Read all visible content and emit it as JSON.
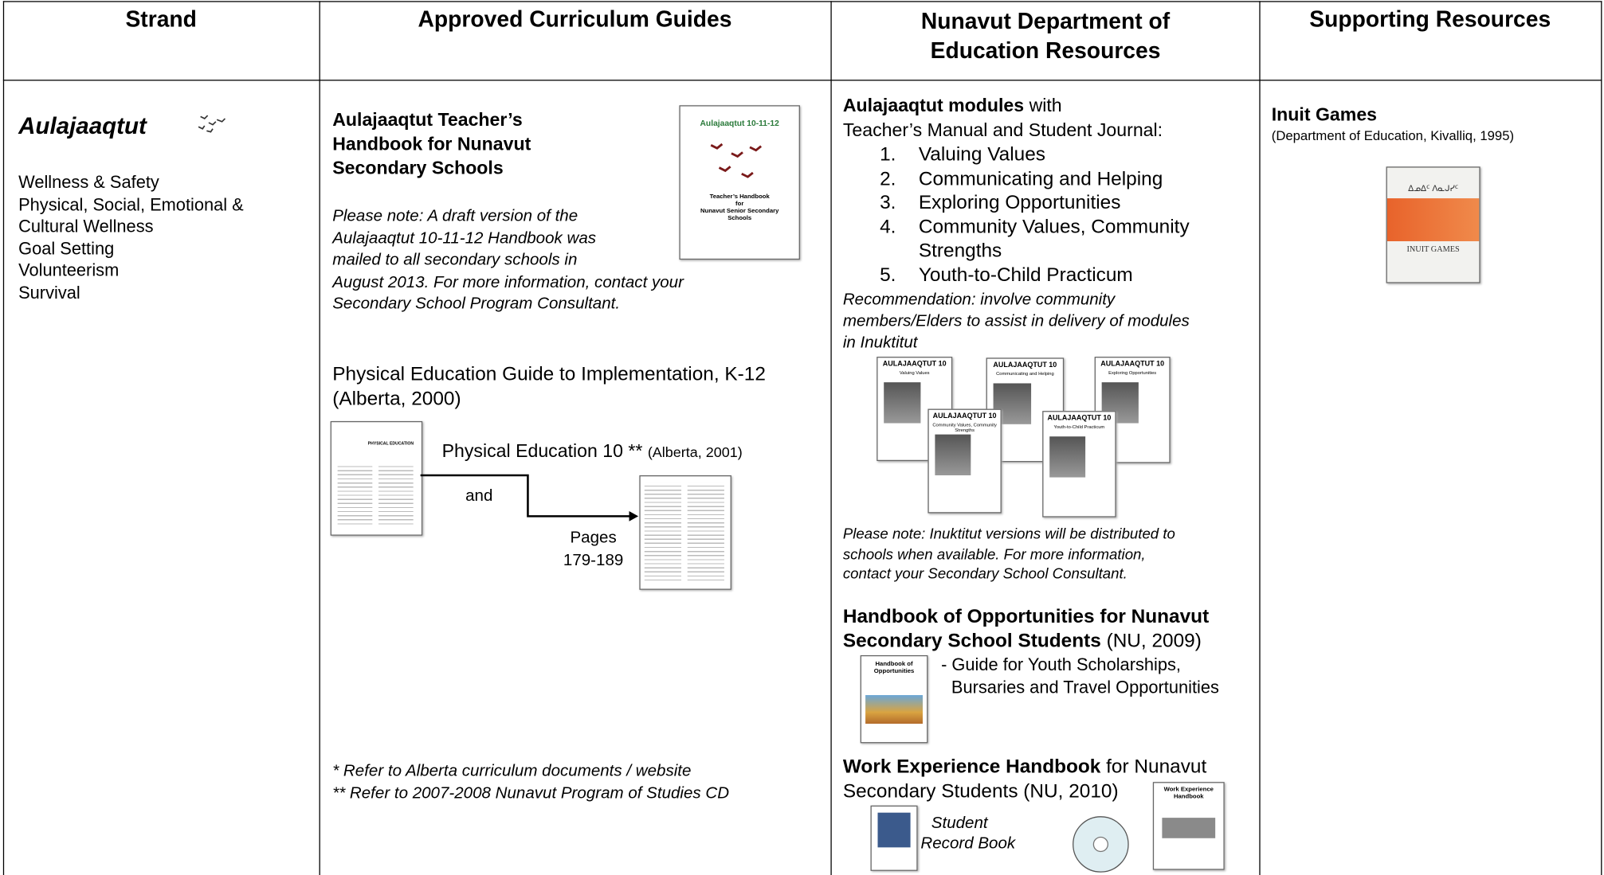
{
  "headers": [
    "Strand",
    "Approved Curriculum Guides",
    "Nunavut Department of Education Resources",
    "Supporting Resources"
  ],
  "strand": {
    "title": "Aulajaaqtut",
    "topics": [
      "Wellness & Safety",
      "Physical, Social, Emotional &",
      "Cultural Wellness",
      "Goal Setting",
      "Volunteerism",
      "Survival"
    ]
  },
  "guides": {
    "handbook": {
      "title_lines": [
        "Aulajaaqtut Teacher’s",
        "Handbook for Nunavut",
        "Secondary Schools"
      ],
      "note_lines": [
        "Please note: A draft version of the",
        "Aulajaaqtut 10-11-12 Handbook was",
        "mailed to all secondary schools in",
        "August 2013. For more information, contact your",
        "Secondary School Program Consultant."
      ],
      "cover": {
        "title": "Aulajaaqtut 10-11-12",
        "subtitle_lines": [
          "Teacher’s Handbook",
          "for",
          "Nunavut Senior Secondary Schools"
        ]
      }
    },
    "pe_guide": {
      "lines": [
        "Physical Education Guide to Implementation, K-12",
        "(Alberta, 2000)"
      ],
      "thumbnail_title": "PHYSICAL EDUCATION"
    },
    "pe10": {
      "title": "Physical Education 10 **",
      "source": "(Alberta, 2001)",
      "connector": "and",
      "pages_lines": [
        "Pages",
        "179-189"
      ]
    },
    "footnotes": [
      "*  Refer to Alberta curriculum documents / website",
      "** Refer to 2007-2008 Nunavut Program of Studies CD"
    ]
  },
  "resources": {
    "modules": {
      "heading_bold": "Aulajaaqtut modules",
      "heading_rest": "with",
      "subheading": "Teacher’s Manual and Student Journal:",
      "items": [
        {
          "number": "1.",
          "lines": [
            "Valuing Values"
          ]
        },
        {
          "number": "2.",
          "lines": [
            "Communicating and Helping"
          ]
        },
        {
          "number": "3.",
          "lines": [
            "Exploring Opportunities"
          ]
        },
        {
          "number": "4.",
          "lines": [
            "Community Values, Community",
            "Strengths"
          ]
        },
        {
          "number": "5.",
          "lines": [
            "Youth-to-Child Practicum"
          ]
        }
      ],
      "recommendation_lines": [
        "Recommendation: involve community",
        "members/Elders to assist in delivery of modules",
        "in Inuktitut"
      ],
      "covers": [
        {
          "series": "AULAJAAQTUT 10",
          "module": "Valuing Values"
        },
        {
          "series": "AULAJAAQTUT 10",
          "module": "Communicating and Helping"
        },
        {
          "series": "AULAJAAQTUT 10",
          "module": "Exploring Opportunities"
        },
        {
          "series": "AULAJAAQTUT 10",
          "module": "Community Values, Community Strengths"
        },
        {
          "series": "AULAJAAQTUT 10",
          "module": "Youth-to-Child Practicum"
        }
      ],
      "note_lines": [
        "Please note:  Inuktitut versions will be distributed to",
        "schools when available. For more information,",
        "contact your Secondary School Consultant."
      ]
    },
    "opportunities": {
      "title_lines": [
        "Handbook of Opportunities for Nunavut",
        "Secondary School Students"
      ],
      "title_rest": "(NU, 2009)",
      "description_lines": [
        "- Guide for Youth Scholarships,",
        "Bursaries and Travel Opportunities"
      ],
      "cover_title": "Handbook of Opportunities"
    },
    "work": {
      "title_bold": "Work Experience Handbook",
      "title_rest_lines": [
        "for Nunavut",
        "Secondary Students (NU, 2010)"
      ],
      "book_lines": [
        "Student",
        "Record Book"
      ],
      "cover_title": "Work Experience Handbook"
    }
  },
  "supporting": {
    "inuit_games": {
      "title": "Inuit Games",
      "source": "(Department of Education, Kivalliq, 1995)",
      "cover_syllabics": "ᐃᓄᐃᑦ ᐱᓇᒍᓯᑦ",
      "cover_title": "INUIT GAMES"
    }
  }
}
